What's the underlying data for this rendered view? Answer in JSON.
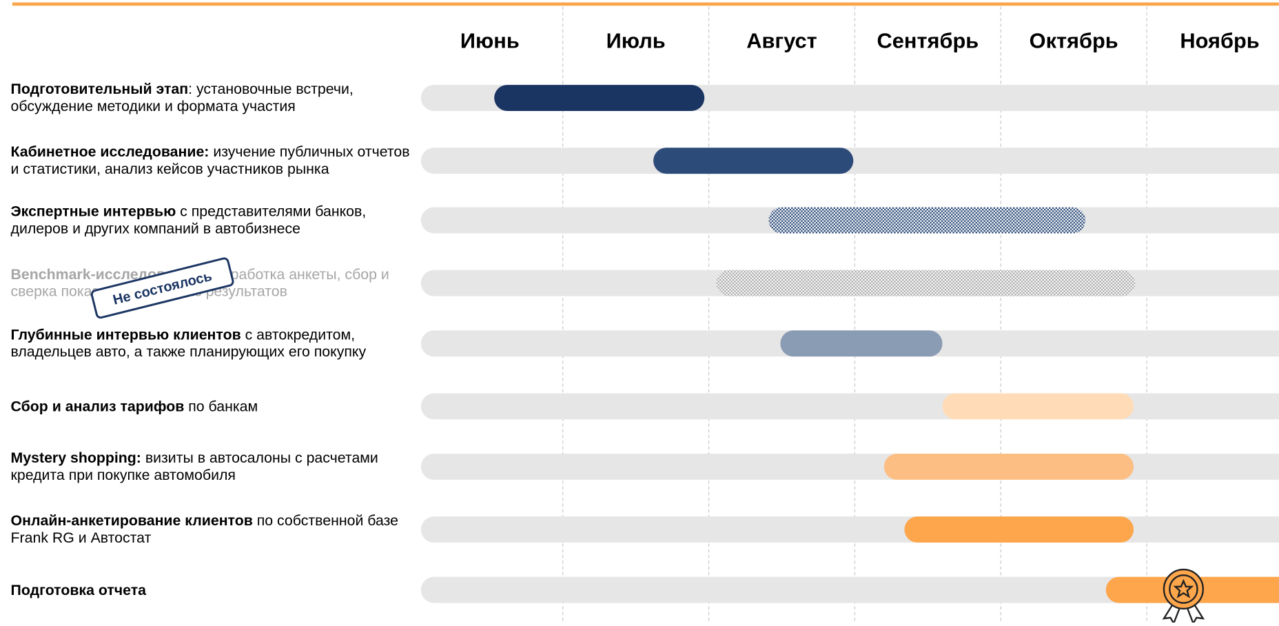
{
  "chart_data": {
    "type": "gantt",
    "categories": [
      "Июнь",
      "Июль",
      "Август",
      "Сентябрь",
      "Октябрь",
      "Ноябрь"
    ],
    "xlim": [
      0,
      6
    ],
    "xticks": [
      1,
      2,
      3,
      4,
      5
    ],
    "grid": true,
    "tasks": [
      {
        "bold": "Подготовительный этап",
        "text": ": установочные встречи, обсуждение методики и формата участия",
        "start": 0.53,
        "end": 1.97,
        "color": "#1b3563"
      },
      {
        "bold": "Кабинетное исследование:",
        "text": " изучение публичных отчетов и статистики, анализ кейсов участников рынка",
        "start": 1.62,
        "end": 2.99,
        "color": "#2d4b79"
      },
      {
        "bold": "Экспертные интервью",
        "text": " с представителями банков, дилеров и других компаний в автобизнесе",
        "start": 2.41,
        "end": 4.58,
        "color": "#2d4b79",
        "hatched": true
      },
      {
        "bold": "Benchmark-исследование",
        "text": ": разработка анкеты, сбор и сверка показателей, анализ результатов",
        "start": 2.05,
        "end": 4.92,
        "color": "#a8a8a8",
        "hatched": true,
        "cancelled": true,
        "note": "Не состоялось"
      },
      {
        "bold": "Глубинные интервью клиентов",
        "text": " с автокредитом, владельцев авто, а также планирующих его покупку",
        "start": 2.49,
        "end": 3.6,
        "color": "#8a9bb4"
      },
      {
        "bold": "Сбор и анализ тарифов",
        "text": " по банкам",
        "start": 3.6,
        "end": 4.91,
        "color": "#ffdcb7"
      },
      {
        "bold": "Mystery shopping:",
        "text": " визиты в автосалоны с расчетами кредита при покупке автомобиля",
        "start": 3.2,
        "end": 4.91,
        "color": "#fcbe83"
      },
      {
        "bold": "Онлайн-анкетирование клиентов",
        "text": " по собственной базе Frank RG и Автостат",
        "start": 3.34,
        "end": 4.91,
        "color": "#fda64b"
      },
      {
        "bold": "Подготовка отчета",
        "text": "",
        "start": 4.72,
        "end": 6,
        "color": "#fda64b"
      }
    ]
  }
}
